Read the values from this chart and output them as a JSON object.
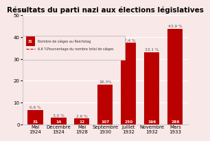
{
  "title": "Résultats du parti nazi aux élections législatives",
  "categories": [
    "Mai\n1924",
    "Décembre\n1924",
    "Mai\n1928",
    "Septembre\n1930",
    "Juillet\n1932",
    "Novembre\n1932",
    "Mars\n1933"
  ],
  "seats": [
    31,
    14,
    12,
    107,
    230,
    196,
    288
  ],
  "percentages": [
    6.6,
    3.0,
    2.6,
    18.3,
    37.4,
    33.1,
    43.9
  ],
  "pct_labels": [
    "6,6 %",
    "3,0 %",
    "2,6 %",
    "18,3%",
    "37,4 %",
    "33,1 %",
    "43,9 %"
  ],
  "bar_color": "#bb0000",
  "background_color": "#f9e8e8",
  "plot_bg_color": "#f9e8e8",
  "ylim": [
    0,
    50
  ],
  "yticks": [
    0,
    10,
    20,
    30,
    40,
    50
  ],
  "ylabel": "%",
  "title_fontsize": 7.5,
  "tick_fontsize": 5.0,
  "bar_label_fontsize": 4.2,
  "legend_seat_text": "31",
  "legend_line1": "Nombre de sièges au Reichstag",
  "legend_line2": "6,6 %Pourcentage du nombre total de sièges"
}
